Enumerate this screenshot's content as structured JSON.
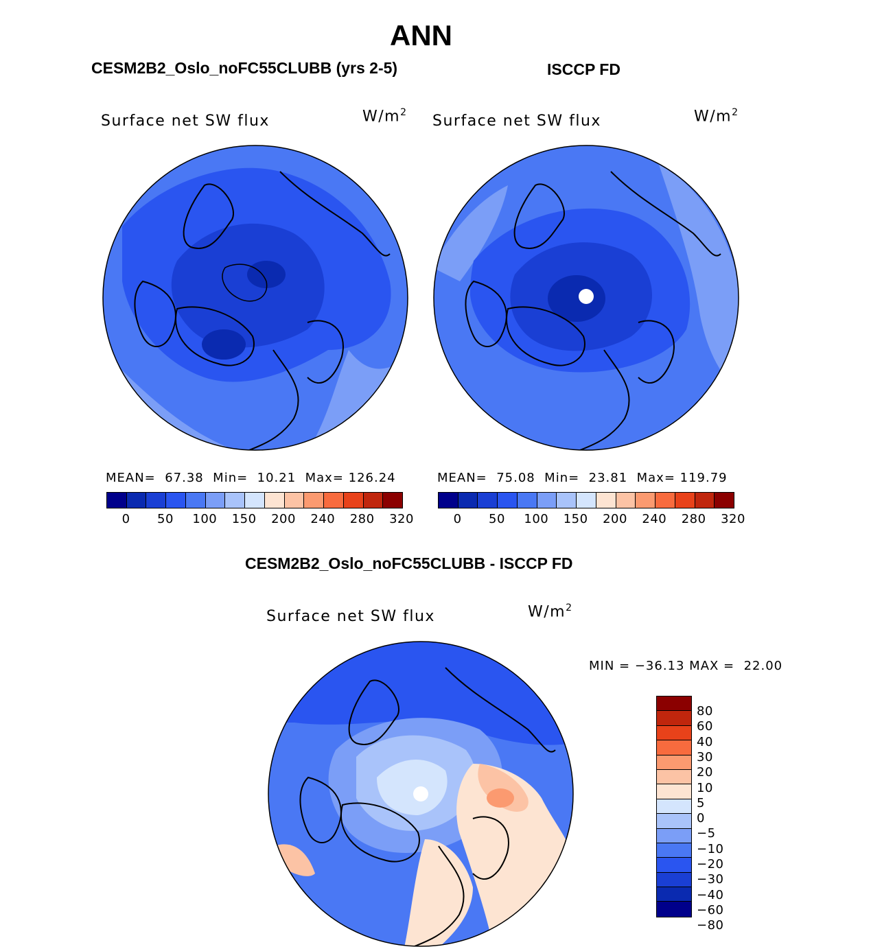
{
  "figure": {
    "title": "ANN",
    "units_base": "W/m",
    "units_exp": "2"
  },
  "panels": [
    {
      "title": "CESM2B2_Oslo_noFC55CLUBB (yrs 2-5)",
      "variable_label": "Surface net SW flux",
      "stats_text": "MEAN=  67.38  Min=  10.21  Max= 126.24"
    },
    {
      "title": "ISCCP FD",
      "variable_label": "Surface net SW flux",
      "stats_text": "MEAN=  75.08  Min=  23.81  Max= 119.79"
    }
  ],
  "diff_panel": {
    "title": "CESM2B2_Oslo_noFC55CLUBB - ISCCP FD",
    "variable_label": "Surface net SW flux",
    "minmax_text": "MIN = −36.13 MAX =  22.00"
  },
  "colorbar_abs": {
    "colors": [
      "#00008b",
      "#0a2ab0",
      "#1a3fd4",
      "#2a55f0",
      "#4a78f4",
      "#7b9ef7",
      "#a9c3fa",
      "#d4e5fd",
      "#fde4d2",
      "#fcc3a5",
      "#fb9a70",
      "#f86b3e",
      "#e8421a",
      "#c0260d",
      "#8b0000"
    ],
    "tick_labels": [
      "0",
      "50",
      "100",
      "150",
      "200",
      "240",
      "280",
      "320"
    ]
  },
  "colorbar_diff": {
    "colors": [
      "#8b0000",
      "#c0260d",
      "#e8421a",
      "#f86b3e",
      "#fb9a70",
      "#fcc3a5",
      "#fde4d2",
      "#d4e5fd",
      "#a9c3fa",
      "#7b9ef7",
      "#4a78f4",
      "#2a55f0",
      "#1a3fd4",
      "#0a2ab0",
      "#00008b"
    ],
    "tick_labels": [
      "80",
      "60",
      "40",
      "30",
      "20",
      "10",
      "5",
      "0",
      "−5",
      "−10",
      "−20",
      "−30",
      "−40",
      "−60",
      "−80"
    ]
  },
  "map_colors": {
    "dark": "#1a3fd4",
    "mid": "#2a55f0",
    "light": "#4a78f4",
    "pale": "#7b9ef7",
    "veryPale": "#a9c3fa",
    "white": "#d4e5fd",
    "pink": "#fde4d2",
    "salmon": "#fcc3a5",
    "orange": "#fb9a70"
  }
}
